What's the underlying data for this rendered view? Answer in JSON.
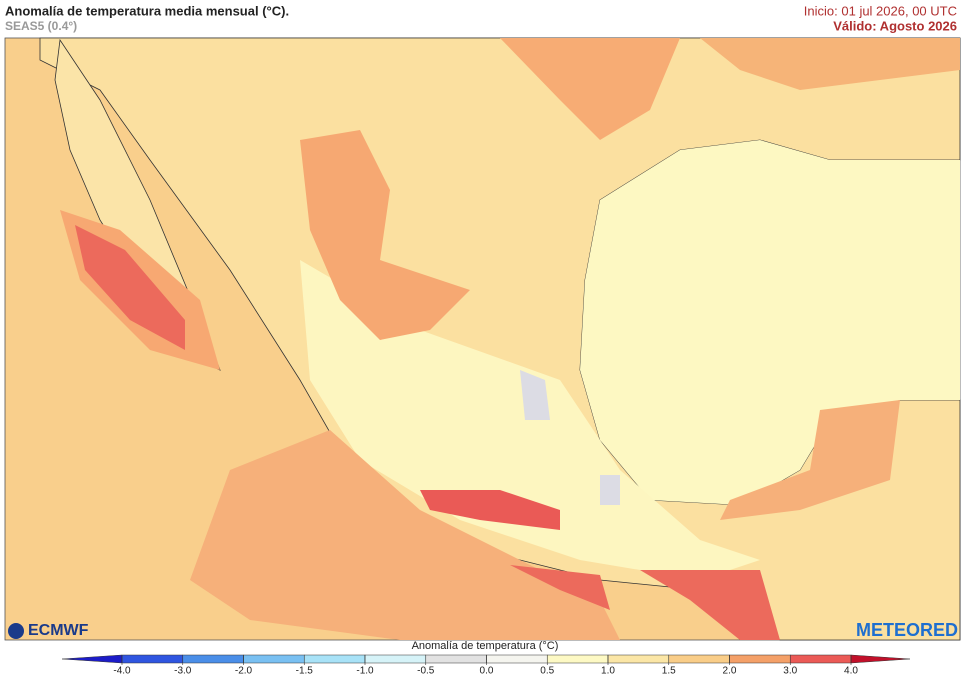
{
  "header": {
    "title": "Anomalía de temperatura media mensual (°C).",
    "subtitle": "SEAS5 (0.4°)",
    "init": "Inicio: 01 jul 2026, 00 UTC",
    "valid": "Válido: Agosto 2026"
  },
  "logos": {
    "left": "ECMWF",
    "right": "METEORED"
  },
  "colorbar": {
    "title": "Anomalía de temperatura (°C)",
    "ticks": [
      {
        "value": -4,
        "label": "-4.0"
      },
      {
        "value": -3,
        "label": "-3.0"
      },
      {
        "value": -2,
        "label": "-2.0"
      },
      {
        "value": -1.5,
        "label": "-1.5"
      },
      {
        "value": -1,
        "label": "-1.0"
      },
      {
        "value": -0.5,
        "label": "-0.5"
      },
      {
        "value": 0,
        "label": "0.0"
      },
      {
        "value": 0.5,
        "label": "0.5"
      },
      {
        "value": 1,
        "label": "1.0"
      },
      {
        "value": 1.5,
        "label": "1.5"
      },
      {
        "value": 2,
        "label": "2.0"
      },
      {
        "value": 3,
        "label": "3.0"
      },
      {
        "value": 4,
        "label": "4.0"
      }
    ],
    "colors": [
      "#1c1cc8",
      "#2f55e0",
      "#4a8ee8",
      "#79c0f2",
      "#a8e2f7",
      "#d6f3f8",
      "#e2e2e2",
      "#f5f5ef",
      "#fdf9c4",
      "#fbe6a6",
      "#f9cd88",
      "#f4a068",
      "#eb5a56",
      "#c2102a"
    ]
  }
}
